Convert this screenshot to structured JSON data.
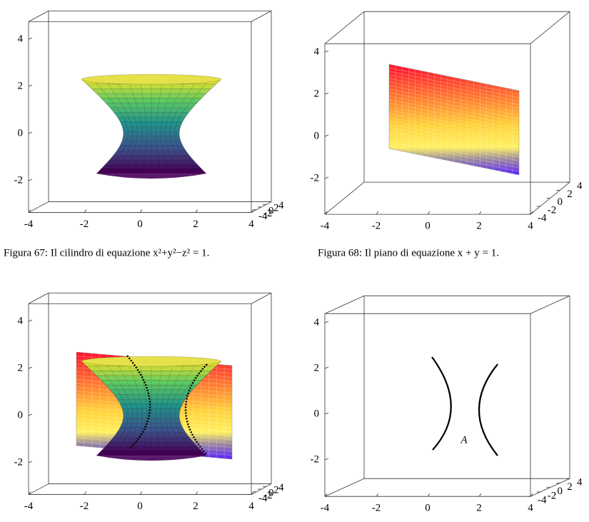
{
  "figures": [
    {
      "xticks": [
        -4,
        -2,
        0,
        2,
        4
      ],
      "yticks": [
        -4,
        -2,
        0,
        2,
        4
      ],
      "zticks": [
        -2,
        0,
        2,
        4
      ],
      "caption": "Figura 67: Il cilindro di equazione x²+y²−z² = 1."
    },
    {
      "xticks": [
        -4,
        -2,
        0,
        2,
        4
      ],
      "yticks": [
        -4,
        -2,
        0,
        2,
        4
      ],
      "zticks": [
        -2,
        0,
        2,
        4
      ],
      "caption": "Figura 68: Il piano di equazione x + y = 1."
    },
    {
      "xticks": [
        -4,
        -2,
        0,
        2,
        4
      ],
      "yticks": [
        -4,
        -2,
        0,
        2,
        4
      ],
      "zticks": [
        -2,
        0,
        2,
        4
      ]
    },
    {
      "xticks": [
        -4,
        -2,
        0,
        2,
        4
      ],
      "yticks": [
        -4,
        -2,
        0,
        2,
        4
      ],
      "zticks": [
        -2,
        0,
        2,
        4
      ],
      "annotation": "A"
    }
  ]
}
